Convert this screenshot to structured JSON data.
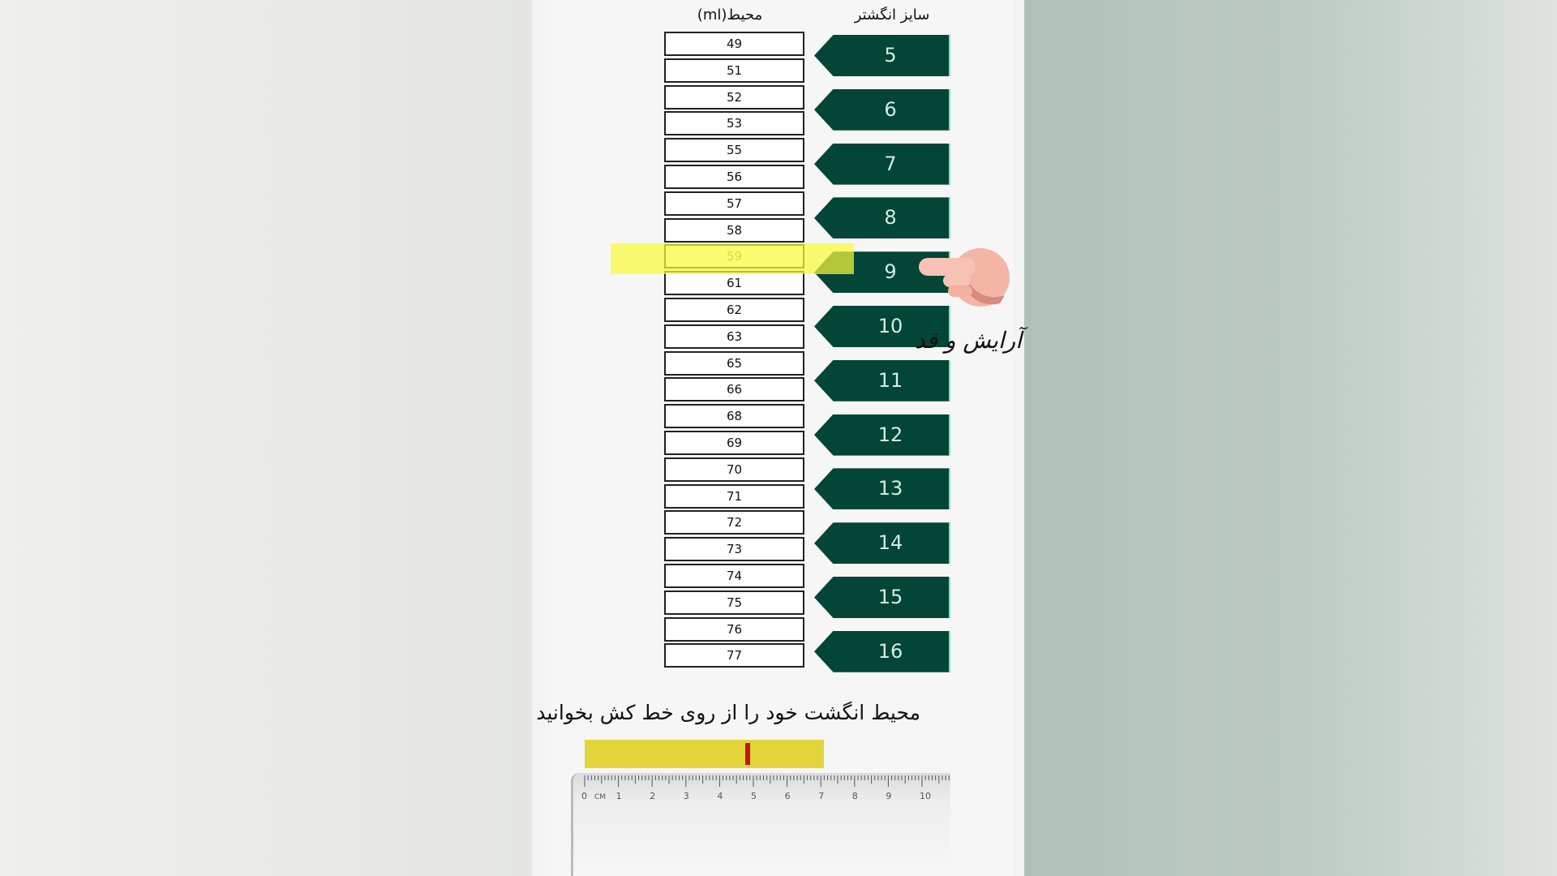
{
  "headers": {
    "circumference": "محیط(ml)",
    "ring_size": "سایز انگشتر"
  },
  "circumferences": [
    "49",
    "51",
    "52",
    "53",
    "55",
    "56",
    "57",
    "58",
    "59",
    "61",
    "62",
    "63",
    "65",
    "66",
    "68",
    "69",
    "70",
    "71",
    "72",
    "73",
    "74",
    "75",
    "76",
    "77"
  ],
  "ring_sizes": [
    "5",
    "6",
    "7",
    "8",
    "9",
    "10",
    "11",
    "12",
    "13",
    "14",
    "15",
    "16"
  ],
  "highlighted": {
    "circumference": "59",
    "ring_size": "9"
  },
  "watermark": "آرایش و قد",
  "instruction": "محیط انگشت خود را از روی خط کش بخوانید",
  "ruler": {
    "unit": "CM",
    "labels": [
      "0",
      "1",
      "2",
      "3",
      "4",
      "5",
      "6",
      "7",
      "8",
      "9",
      "10"
    ],
    "marker_value_cm": 4.9
  },
  "colors": {
    "arrow": "#034536",
    "highlight": "#fafa3c",
    "bar": "#e3d43c",
    "marker": "#c01818"
  }
}
